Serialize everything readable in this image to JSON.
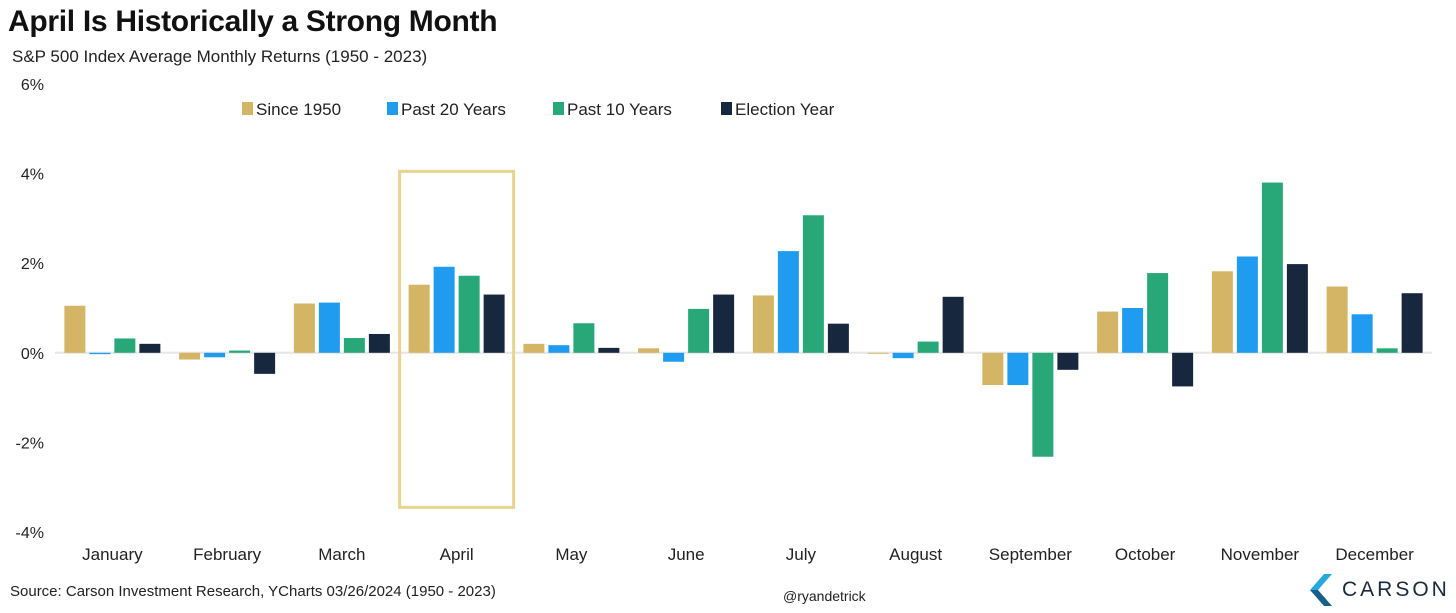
{
  "title": "April Is Historically a Strong Month",
  "subtitle": "S&P 500 Index Average Monthly Returns (1950 - 2023)",
  "source": "Source: Carson Investment Research, YCharts 03/26/2024 (1950 - 2023)",
  "handle": "@ryandetrick",
  "logo_text": "CARSON",
  "highlight_color": "#e8d48f",
  "chart_data": {
    "type": "bar",
    "title": "April Is Historically a Strong Month",
    "subtitle": "S&P 500 Index Average Monthly Returns (1950 - 2023)",
    "ylim": [
      -4,
      6
    ],
    "yticks": [
      "-4%",
      "-2%",
      "0%",
      "2%",
      "4%",
      "6%"
    ],
    "ytick_values": [
      -4,
      -2,
      0,
      2,
      4,
      6
    ],
    "grid": false,
    "legend_position": "top",
    "highlight_category": "April",
    "categories": [
      "January",
      "February",
      "March",
      "April",
      "May",
      "June",
      "July",
      "August",
      "September",
      "October",
      "November",
      "December"
    ],
    "series": [
      {
        "name": "Since 1950",
        "color": "#d4b465",
        "values": [
          1.05,
          -0.15,
          1.1,
          1.52,
          0.2,
          0.1,
          1.28,
          -0.02,
          -0.72,
          0.92,
          1.82,
          1.48
        ]
      },
      {
        "name": "Past 20 Years",
        "color": "#1f9bf0",
        "values": [
          -0.03,
          -0.1,
          1.12,
          1.92,
          0.17,
          -0.2,
          2.27,
          -0.12,
          -0.72,
          1.0,
          2.15,
          0.86
        ]
      },
      {
        "name": "Past 10 Years",
        "color": "#28a878",
        "values": [
          0.32,
          0.05,
          0.33,
          1.72,
          0.66,
          0.98,
          3.07,
          0.25,
          -2.32,
          1.78,
          3.8,
          0.1
        ]
      },
      {
        "name": "Election Year",
        "color": "#17273d",
        "values": [
          0.2,
          -0.47,
          0.42,
          1.3,
          0.11,
          1.3,
          0.65,
          1.25,
          -0.38,
          -0.75,
          1.98,
          1.33
        ]
      }
    ]
  }
}
